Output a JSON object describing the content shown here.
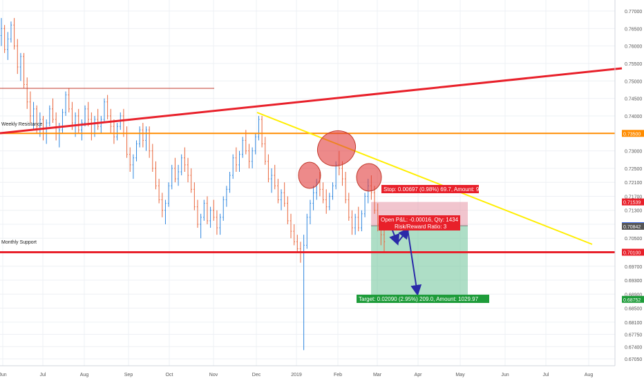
{
  "chart_data": {
    "type": "candlestick",
    "x_ticks": [
      "Jun",
      "Jul",
      "Aug",
      "Sep",
      "Oct",
      "Nov",
      "Dec",
      "2019",
      "Feb",
      "Mar",
      "Apr",
      "May",
      "Jun",
      "Jul",
      "Aug"
    ],
    "y_ticks": [
      0.77,
      0.765,
      0.76,
      0.755,
      0.75,
      0.745,
      0.74,
      0.735,
      0.73,
      0.725,
      0.721,
      0.717,
      0.713,
      0.709,
      0.705,
      0.701,
      0.697,
      0.693,
      0.689,
      0.685,
      0.681,
      0.6775,
      0.674,
      0.6705
    ],
    "y_tick_labels": [
      "0.77000",
      "0.76500",
      "0.76000",
      "0.75500",
      "0.75000",
      "0.74500",
      "0.74000",
      "0.73500",
      "0.73000",
      "0.72500",
      "0.72100",
      "0.71700",
      "0.71300",
      "0.70900",
      "0.70500",
      "0.70100",
      "0.69700",
      "0.69300",
      "0.68900",
      "0.68500",
      "0.68100",
      "0.67750",
      "0.67400",
      "0.67050"
    ],
    "price_badges": [
      {
        "label": "0.73500",
        "value": 0.735,
        "color": "#ff8c00"
      },
      {
        "label": "0.71539",
        "value": 0.71539,
        "color": "#e8202a"
      },
      {
        "label": "0.70858",
        "value": 0.70858,
        "color": "#2962ff"
      },
      {
        "label": "0.70842",
        "value": 0.70842,
        "color": "#555555"
      },
      {
        "label": "0.70100",
        "value": 0.701,
        "color": "#e8202a"
      },
      {
        "label": "0.68752",
        "value": 0.68752,
        "color": "#1e9c3a"
      }
    ],
    "annotations": {
      "weekly_resistance": "Weekly Resistance",
      "monthly_support": "Monthly Support",
      "stop": "Stop: 0.00697 (0.98%) 69.7, Amount: 990.01",
      "open_pl": "Open P&L: -0.00016, Qty: 1434",
      "risk_reward": "Risk/Reward Ratio: 3",
      "target": "Target: 0.02090 (2.95%) 209.0, Amount: 1029.97"
    },
    "colors": {
      "up": "#2e86de",
      "down": "#e8643a",
      "resistance_h": "#ff8c00",
      "trendline": "#e8202a",
      "support_h": "#e8202a",
      "downtrend": "#ffee00",
      "arrow": "#2a2aa8",
      "stop_zone": "rgba(230,150,165,0.55)",
      "target_zone": "rgba(120,200,160,0.6)",
      "highlight": "rgba(225,60,60,0.6)"
    },
    "candles": [
      [
        0.763,
        0.768,
        0.76,
        0.765
      ],
      [
        0.765,
        0.766,
        0.758,
        0.759
      ],
      [
        0.759,
        0.764,
        0.756,
        0.762
      ],
      [
        0.762,
        0.767,
        0.761,
        0.766
      ],
      [
        0.766,
        0.768,
        0.759,
        0.76
      ],
      [
        0.76,
        0.762,
        0.752,
        0.754
      ],
      [
        0.754,
        0.758,
        0.75,
        0.757
      ],
      [
        0.757,
        0.758,
        0.748,
        0.749
      ],
      [
        0.749,
        0.751,
        0.742,
        0.744
      ],
      [
        0.744,
        0.747,
        0.738,
        0.74
      ],
      [
        0.74,
        0.744,
        0.736,
        0.742
      ],
      [
        0.742,
        0.743,
        0.735,
        0.737
      ],
      [
        0.737,
        0.741,
        0.734,
        0.739
      ],
      [
        0.739,
        0.74,
        0.733,
        0.735
      ],
      [
        0.735,
        0.739,
        0.732,
        0.738
      ],
      [
        0.738,
        0.743,
        0.737,
        0.742
      ],
      [
        0.742,
        0.745,
        0.738,
        0.739
      ],
      [
        0.739,
        0.741,
        0.733,
        0.735
      ],
      [
        0.735,
        0.738,
        0.731,
        0.736
      ],
      [
        0.736,
        0.742,
        0.735,
        0.741
      ],
      [
        0.741,
        0.747,
        0.74,
        0.746
      ],
      [
        0.746,
        0.748,
        0.741,
        0.742
      ],
      [
        0.742,
        0.744,
        0.736,
        0.738
      ],
      [
        0.738,
        0.741,
        0.734,
        0.74
      ],
      [
        0.74,
        0.742,
        0.735,
        0.736
      ],
      [
        0.736,
        0.739,
        0.733,
        0.738
      ],
      [
        0.738,
        0.743,
        0.737,
        0.742
      ],
      [
        0.742,
        0.744,
        0.737,
        0.739
      ],
      [
        0.739,
        0.741,
        0.733,
        0.735
      ],
      [
        0.735,
        0.74,
        0.734,
        0.739
      ],
      [
        0.739,
        0.742,
        0.736,
        0.737
      ],
      [
        0.737,
        0.74,
        0.735,
        0.739
      ],
      [
        0.739,
        0.745,
        0.738,
        0.744
      ],
      [
        0.744,
        0.746,
        0.739,
        0.74
      ],
      [
        0.74,
        0.742,
        0.735,
        0.737
      ],
      [
        0.737,
        0.739,
        0.732,
        0.734
      ],
      [
        0.734,
        0.738,
        0.733,
        0.737
      ],
      [
        0.737,
        0.741,
        0.736,
        0.74
      ],
      [
        0.74,
        0.742,
        0.734,
        0.735
      ],
      [
        0.735,
        0.737,
        0.728,
        0.729
      ],
      [
        0.729,
        0.731,
        0.724,
        0.726
      ],
      [
        0.726,
        0.729,
        0.722,
        0.728
      ],
      [
        0.728,
        0.733,
        0.727,
        0.732
      ],
      [
        0.732,
        0.737,
        0.731,
        0.736
      ],
      [
        0.736,
        0.738,
        0.731,
        0.733
      ],
      [
        0.733,
        0.737,
        0.73,
        0.736
      ],
      [
        0.736,
        0.737,
        0.728,
        0.73
      ],
      [
        0.73,
        0.732,
        0.724,
        0.725
      ],
      [
        0.725,
        0.727,
        0.719,
        0.72
      ],
      [
        0.72,
        0.722,
        0.715,
        0.716
      ],
      [
        0.716,
        0.718,
        0.711,
        0.713
      ],
      [
        0.713,
        0.716,
        0.709,
        0.715
      ],
      [
        0.715,
        0.721,
        0.714,
        0.72
      ],
      [
        0.72,
        0.726,
        0.719,
        0.725
      ],
      [
        0.725,
        0.728,
        0.721,
        0.722
      ],
      [
        0.722,
        0.726,
        0.72,
        0.724
      ],
      [
        0.724,
        0.729,
        0.723,
        0.728
      ],
      [
        0.728,
        0.731,
        0.724,
        0.726
      ],
      [
        0.726,
        0.728,
        0.721,
        0.723
      ],
      [
        0.723,
        0.725,
        0.718,
        0.719
      ],
      [
        0.719,
        0.721,
        0.713,
        0.714
      ],
      [
        0.714,
        0.716,
        0.708,
        0.709
      ],
      [
        0.709,
        0.712,
        0.705,
        0.711
      ],
      [
        0.711,
        0.716,
        0.71,
        0.715
      ],
      [
        0.715,
        0.717,
        0.709,
        0.71
      ],
      [
        0.71,
        0.714,
        0.708,
        0.713
      ],
      [
        0.713,
        0.716,
        0.71,
        0.711
      ],
      [
        0.711,
        0.713,
        0.706,
        0.708
      ],
      [
        0.708,
        0.712,
        0.706,
        0.711
      ],
      [
        0.711,
        0.717,
        0.71,
        0.716
      ],
      [
        0.716,
        0.72,
        0.714,
        0.719
      ],
      [
        0.719,
        0.724,
        0.718,
        0.723
      ],
      [
        0.723,
        0.729,
        0.722,
        0.728
      ],
      [
        0.728,
        0.731,
        0.724,
        0.726
      ],
      [
        0.726,
        0.73,
        0.724,
        0.729
      ],
      [
        0.729,
        0.734,
        0.728,
        0.733
      ],
      [
        0.733,
        0.736,
        0.729,
        0.73
      ],
      [
        0.73,
        0.732,
        0.725,
        0.727
      ],
      [
        0.727,
        0.731,
        0.725,
        0.73
      ],
      [
        0.73,
        0.735,
        0.729,
        0.734
      ],
      [
        0.734,
        0.74,
        0.733,
        0.739
      ],
      [
        0.739,
        0.74,
        0.731,
        0.732
      ],
      [
        0.732,
        0.734,
        0.726,
        0.727
      ],
      [
        0.727,
        0.729,
        0.721,
        0.722
      ],
      [
        0.722,
        0.725,
        0.718,
        0.723
      ],
      [
        0.723,
        0.726,
        0.719,
        0.72
      ],
      [
        0.72,
        0.722,
        0.715,
        0.716
      ],
      [
        0.716,
        0.719,
        0.713,
        0.718
      ],
      [
        0.718,
        0.721,
        0.714,
        0.715
      ],
      [
        0.715,
        0.717,
        0.709,
        0.71
      ],
      [
        0.71,
        0.712,
        0.705,
        0.707
      ],
      [
        0.707,
        0.709,
        0.703,
        0.704
      ],
      [
        0.704,
        0.706,
        0.701,
        0.702
      ],
      [
        0.702,
        0.704,
        0.698,
        0.701
      ],
      [
        0.701,
        0.706,
        0.673,
        0.703
      ],
      [
        0.703,
        0.712,
        0.702,
        0.711
      ],
      [
        0.711,
        0.716,
        0.709,
        0.715
      ],
      [
        0.715,
        0.72,
        0.713,
        0.718
      ],
      [
        0.718,
        0.722,
        0.716,
        0.721
      ],
      [
        0.721,
        0.724,
        0.717,
        0.719
      ],
      [
        0.719,
        0.721,
        0.715,
        0.716
      ],
      [
        0.716,
        0.719,
        0.712,
        0.714
      ],
      [
        0.714,
        0.718,
        0.713,
        0.717
      ],
      [
        0.717,
        0.721,
        0.716,
        0.72
      ],
      [
        0.72,
        0.727,
        0.719,
        0.726
      ],
      [
        0.726,
        0.73,
        0.723,
        0.725
      ],
      [
        0.725,
        0.727,
        0.72,
        0.722
      ],
      [
        0.722,
        0.724,
        0.715,
        0.716
      ],
      [
        0.716,
        0.718,
        0.71,
        0.711
      ],
      [
        0.711,
        0.713,
        0.706,
        0.708
      ],
      [
        0.708,
        0.712,
        0.706,
        0.711
      ],
      [
        0.711,
        0.714,
        0.707,
        0.708
      ],
      [
        0.708,
        0.713,
        0.707,
        0.712
      ],
      [
        0.712,
        0.718,
        0.711,
        0.717
      ],
      [
        0.717,
        0.722,
        0.715,
        0.72
      ],
      [
        0.72,
        0.723,
        0.716,
        0.718
      ],
      [
        0.718,
        0.72,
        0.712,
        0.713
      ],
      [
        0.713,
        0.715,
        0.707,
        0.709
      ],
      [
        0.709,
        0.711,
        0.703,
        0.706
      ],
      [
        0.706,
        0.708,
        0.701,
        0.704
      ]
    ]
  }
}
